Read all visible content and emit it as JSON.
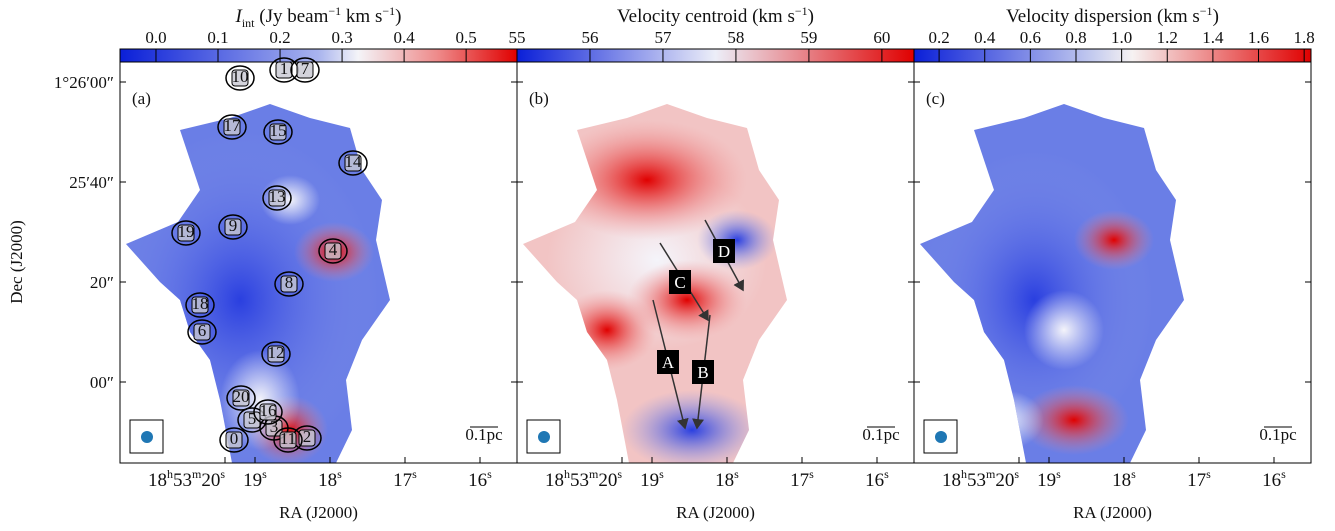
{
  "y_axis_title": "Dec (J2000)",
  "dec_ticks": [
    "1°26′00″",
    "25′40″",
    "20″",
    "00″"
  ],
  "scale_bar": "0.1pc",
  "panels": [
    {
      "label": "(a)",
      "x_axis_title": "RA (J2000)",
      "ra_ticks": [
        [
          "18",
          "h",
          "53",
          "m",
          "20",
          "s"
        ],
        [
          "19",
          "s"
        ],
        [
          "18",
          "s"
        ],
        [
          "17",
          "s"
        ],
        [
          "16",
          "s"
        ]
      ],
      "colorbar": {
        "title": [
          "I",
          "int",
          " (Jy beam",
          "−1",
          " km s",
          "−1",
          ")"
        ],
        "lim": [
          -0.058,
          0.582
        ],
        "ticks": [
          {
            "value": 0,
            "label": "0.0"
          },
          0.1,
          0.2,
          0.3,
          0.4,
          0.5
        ]
      },
      "clumps": [
        "0",
        "1",
        "2",
        "3",
        "4",
        "5",
        "6",
        "7",
        "8",
        "9",
        "10",
        "11",
        "12",
        "13",
        "14",
        "15",
        "16",
        "17",
        "18",
        "19",
        "20"
      ]
    },
    {
      "label": "(b)",
      "x_axis_title": "RA (J2000)",
      "ra_ticks": [
        [
          "18",
          "h",
          "53",
          "m",
          "20",
          "s"
        ],
        [
          "19",
          "s"
        ],
        [
          "18",
          "s"
        ],
        [
          "17",
          "s"
        ],
        [
          "16",
          "s"
        ]
      ],
      "colorbar": {
        "title": [
          "Velocity centroid (km s",
          "−1",
          ")"
        ],
        "lim": [
          55,
          60.44
        ],
        "ticks": [
          55,
          56,
          57,
          58,
          59,
          60
        ]
      },
      "flows": [
        "A",
        "B",
        "C",
        "D"
      ]
    },
    {
      "label": "(c)",
      "x_axis_title": "RA (J2000)",
      "ra_ticks": [
        [
          "18",
          "h",
          "53",
          "m",
          "20",
          "s"
        ],
        [
          "19",
          "s"
        ],
        [
          "18",
          "s"
        ],
        [
          "17",
          "s"
        ],
        [
          "16",
          "s"
        ]
      ],
      "colorbar": {
        "title": [
          "Velocity dispersion (km s",
          "−1",
          ")"
        ],
        "lim": [
          0.09,
          1.83
        ],
        "ticks": [
          0.2,
          0.4,
          0.6,
          0.8,
          {
            "value": 1,
            "label": "1.0"
          },
          1.2,
          1.4,
          1.6,
          1.8
        ]
      }
    }
  ]
}
